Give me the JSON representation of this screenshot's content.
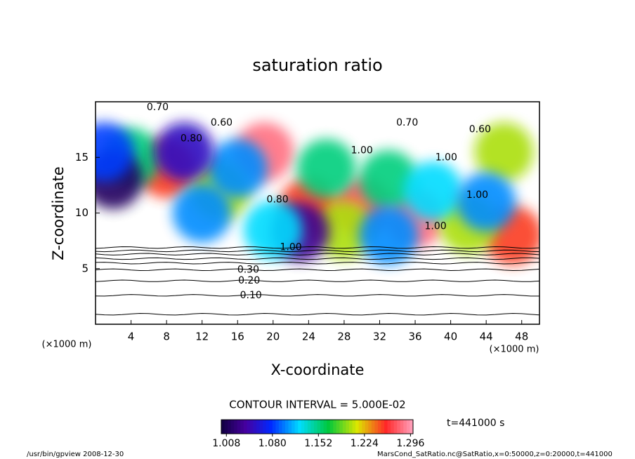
{
  "chart_data": {
    "type": "contour",
    "title": "saturation ratio",
    "x_label": "X-coordinate",
    "y_label": "Z-coordinate",
    "x_unit": "(×1000 m)",
    "y_unit": "(×1000 m)",
    "xlim": [
      0,
      50
    ],
    "xticks": [
      4,
      8,
      12,
      16,
      20,
      24,
      28,
      32,
      36,
      40,
      44,
      48
    ],
    "ylim": [
      0,
      20
    ],
    "yticks": [
      5,
      10,
      15
    ],
    "contour_interval": "CONTOUR INTERVAL = 5.000E-02",
    "time_label": "t=441000 s",
    "clim": [
      1.0,
      1.3
    ],
    "colorbar_ticks": [
      {
        "value": 1.008,
        "label": "1.008"
      },
      {
        "value": 1.08,
        "label": "1.080"
      },
      {
        "value": 1.152,
        "label": "1.152"
      },
      {
        "value": 1.224,
        "label": "1.224"
      },
      {
        "value": 1.296,
        "label": "1.296"
      }
    ],
    "cells": {
      "x": [
        19,
        30,
        36,
        24,
        8,
        4,
        14,
        46,
        47,
        42,
        26,
        33,
        28,
        2,
        23,
        12,
        16,
        38,
        44,
        10,
        20,
        1,
        33
      ],
      "z": [
        15.5,
        10.5,
        9.5,
        10.5,
        14,
        15,
        12,
        15.5,
        8,
        9,
        14,
        13,
        8.5,
        13,
        8.3,
        10,
        14,
        12,
        11,
        15.5,
        8.5,
        15.5,
        8
      ],
      "values": [
        1.28,
        1.27,
        1.28,
        1.25,
        1.25,
        1.15,
        1.2,
        1.2,
        1.25,
        1.2,
        1.15,
        1.15,
        1.2,
        1.01,
        1.03,
        1.1,
        1.1,
        1.12,
        1.1,
        1.05,
        1.12,
        1.08,
        1.1
      ]
    },
    "contour_lines_z": [
      0.9,
      2.6,
      3.9,
      4.9,
      5.5,
      5.9,
      6.3,
      6.6,
      6.9
    ],
    "contour_labels": [
      {
        "text": "0.10",
        "x": 17.5,
        "y": 2.6
      },
      {
        "text": "0.20",
        "x": 17.3,
        "y": 3.9
      },
      {
        "text": "0.30",
        "x": 17.2,
        "y": 4.9
      },
      {
        "text": "0.70",
        "x": 7,
        "y": 19.5
      },
      {
        "text": "0.60",
        "x": 14.2,
        "y": 18.1
      },
      {
        "text": "0.80",
        "x": 10.8,
        "y": 16.7
      },
      {
        "text": "0.70",
        "x": 35.1,
        "y": 18.1
      },
      {
        "text": "0.60",
        "x": 43.3,
        "y": 17.5
      },
      {
        "text": "1.00",
        "x": 30,
        "y": 15.6
      },
      {
        "text": "1.00",
        "x": 39.5,
        "y": 15
      },
      {
        "text": "1.00",
        "x": 43,
        "y": 11.6
      },
      {
        "text": "1.00",
        "x": 22,
        "y": 6.9
      },
      {
        "text": "0.80",
        "x": 20.5,
        "y": 11.2
      },
      {
        "text": "1.00",
        "x": 38.3,
        "y": 8.8
      }
    ],
    "footer_left": "/usr/bin/gpview   2008-12-30",
    "footer_right": "MarsCond_SatRatio.nc@SatRatio,x=0:50000,z=0:20000,t=441000"
  }
}
